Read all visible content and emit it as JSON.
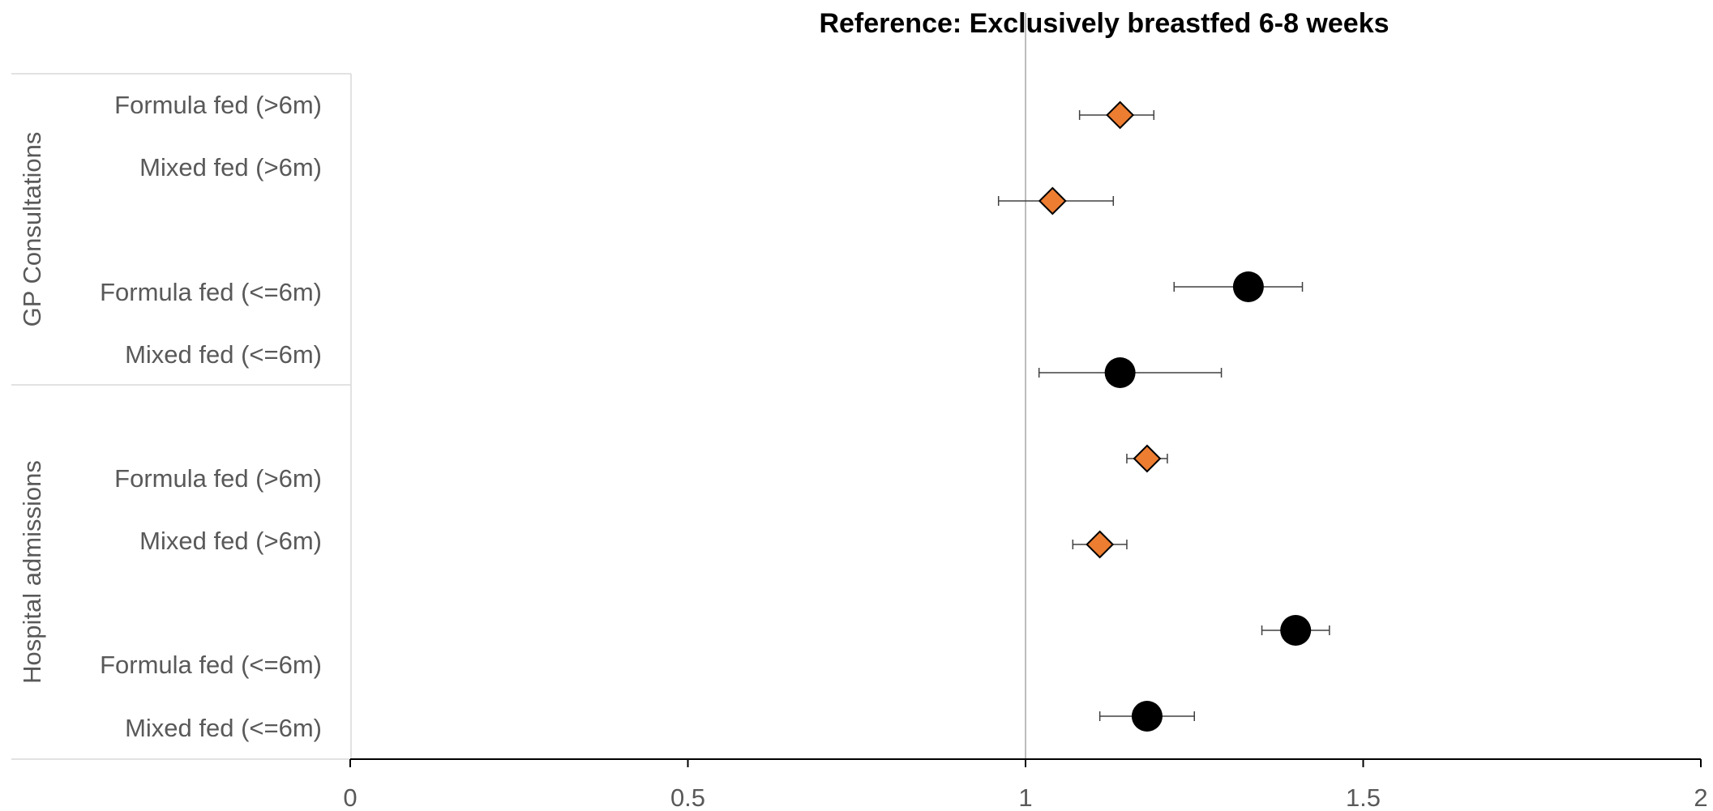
{
  "chart_data": {
    "type": "scatter",
    "title": "Reference: Exclusively breastfed 6-8 weeks",
    "xlabel": "",
    "ylabel": "",
    "xlim": [
      0,
      2
    ],
    "x_ticks": [
      "0",
      "0.5",
      "1",
      "1.5",
      "2"
    ],
    "reference_line": 1,
    "grid": false,
    "groups": [
      {
        "name": "GP Consultations",
        "labels": [
          "Formula fed (>6m)",
          "Mixed fed (>6m)",
          "Formula fed (<=6m)",
          "Mixed fed (<=6m)"
        ]
      },
      {
        "name": "Hospital admissions",
        "labels": [
          "Formula fed (>6m)",
          "Mixed fed (>6m)",
          "Formula fed (<=6m)",
          "Mixed fed (<=6m)"
        ]
      }
    ],
    "series": [
      {
        "marker": "diamond",
        "color": "#ED7D31",
        "points": [
          {
            "group": "GP Consultations",
            "label": "Formula fed (>6m)",
            "x": 1.14,
            "low": 1.08,
            "high": 1.19
          },
          {
            "group": "GP Consultations",
            "label": "Mixed fed (>6m)",
            "x": 1.04,
            "low": 0.96,
            "high": 1.13
          },
          {
            "group": "Hospital admissions",
            "label": "Formula fed (>6m)",
            "x": 1.18,
            "low": 1.15,
            "high": 1.21
          },
          {
            "group": "Hospital admissions",
            "label": "Mixed fed (>6m)",
            "x": 1.11,
            "low": 1.07,
            "high": 1.15
          }
        ]
      },
      {
        "marker": "circle",
        "color": "#000000",
        "points": [
          {
            "group": "GP Consultations",
            "label": "Formula fed (<=6m)",
            "x": 1.33,
            "low": 1.22,
            "high": 1.41
          },
          {
            "group": "GP Consultations",
            "label": "Mixed fed (<=6m)",
            "x": 1.14,
            "low": 1.02,
            "high": 1.29
          },
          {
            "group": "Hospital admissions",
            "label": "Formula fed (<=6m)",
            "x": 1.4,
            "low": 1.35,
            "high": 1.45
          },
          {
            "group": "Hospital admissions",
            "label": "Mixed fed (<=6m)",
            "x": 1.18,
            "low": 1.11,
            "high": 1.25
          }
        ]
      }
    ]
  }
}
